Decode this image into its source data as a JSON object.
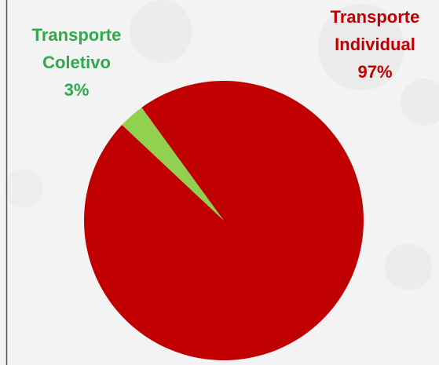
{
  "chart_data": {
    "type": "pie",
    "categories": [
      "Transporte Coletivo",
      "Transporte Individual"
    ],
    "values": [
      3,
      97
    ],
    "value_labels": [
      "3%",
      "97%"
    ],
    "colors": [
      "#92d050",
      "#c00000"
    ],
    "label_colors": [
      "#2eaa4a",
      "#c00000"
    ]
  }
}
